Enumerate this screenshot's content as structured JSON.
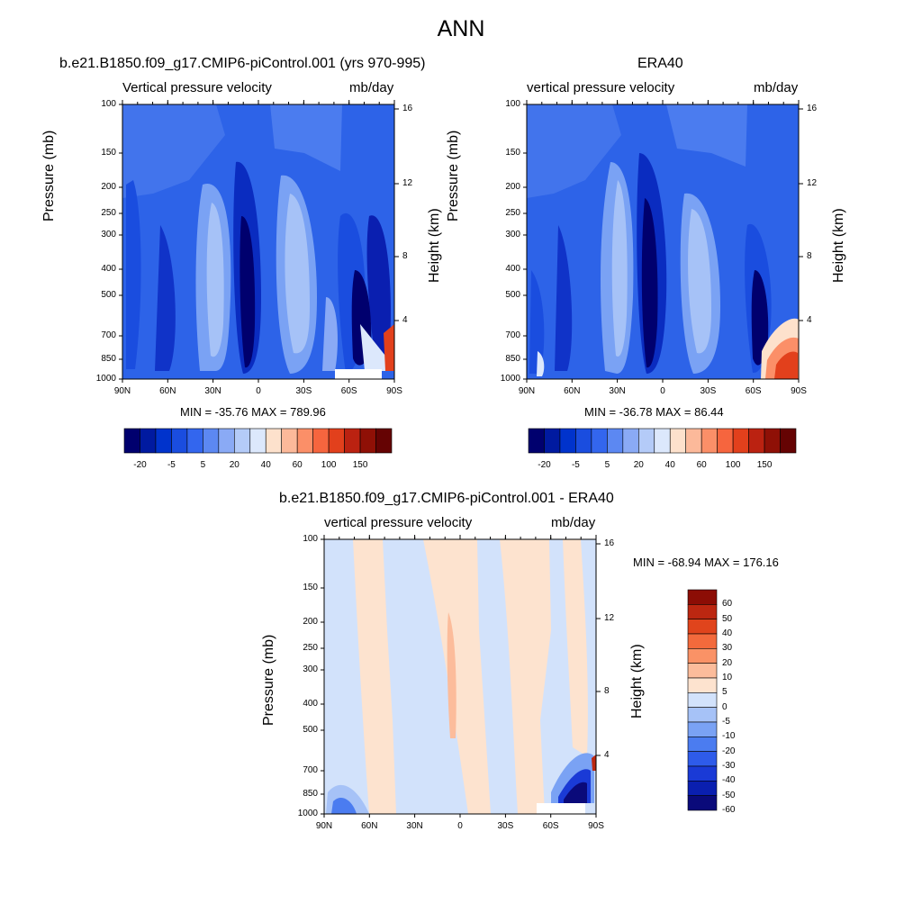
{
  "page_title": "ANN",
  "colors": {
    "levels_fields": [
      "#00006e",
      "#001aa0",
      "#0033cc",
      "#1a4ddf",
      "#3366ee",
      "#5c88f2",
      "#8aaaf5",
      "#b4cbf8",
      "#dce8fc",
      "#fde1cc",
      "#fcb99a",
      "#fb8f68",
      "#f6653e",
      "#e2401c",
      "#bb2211",
      "#8f1006",
      "#650303"
    ],
    "levels_diff": [
      "#0a0a7a",
      "#0a1fb0",
      "#1a3ad6",
      "#2e5bea",
      "#4b7cf0",
      "#7aa2f4",
      "#a6c2f7",
      "#d2e2fb",
      "#fde3cf",
      "#fcbc9b",
      "#fa9266",
      "#f36a3c",
      "#e0441c",
      "#bc2711",
      "#8c0d05"
    ]
  },
  "panels": [
    {
      "title": "b.e21.B1850.f09_g17.CMIP6-piControl.001 (yrs 970-995)",
      "left_label": "Vertical pressure velocity",
      "right_label": "mb/day",
      "stats": "MIN = -35.76  MAX = 789.96"
    },
    {
      "title": "ERA40",
      "left_label": "vertical pressure velocity",
      "right_label": "mb/day",
      "stats": "MIN = -36.78  MAX =  86.44"
    },
    {
      "title": "b.e21.B1850.f09_g17.CMIP6-piControl.001 - ERA40",
      "left_label": "vertical pressure velocity",
      "right_label": "mb/day",
      "stats": "MIN = -68.94  MAX = 176.16"
    }
  ],
  "axes": {
    "ylabel": "Pressure (mb)",
    "y2label": "Height (km)",
    "pressure_ticks": [
      "100",
      "150",
      "200",
      "250",
      "300",
      "400",
      "500",
      "700",
      "850",
      "1000"
    ],
    "height_ticks": [
      "16",
      "12",
      "8",
      "4"
    ],
    "lat_ticks": [
      "90N",
      "60N",
      "30N",
      "0",
      "30S",
      "60S",
      "90S"
    ]
  },
  "colorbar_fields": {
    "labels": [
      "-20",
      "-5",
      "5",
      "20",
      "40",
      "60",
      "100",
      "150"
    ]
  },
  "colorbar_diff": {
    "labels": [
      "60",
      "50",
      "40",
      "30",
      "20",
      "10",
      "5",
      "0",
      "-5",
      "-10",
      "-20",
      "-30",
      "-40",
      "-50",
      "-60"
    ]
  }
}
